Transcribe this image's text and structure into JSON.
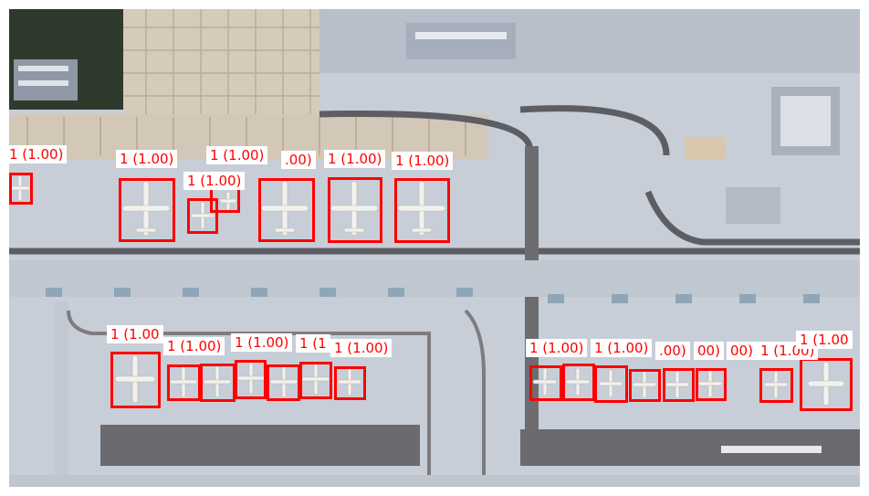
{
  "image": {
    "content": "aerial satellite view of airport apron with parked aircraft",
    "palette": {
      "apron": "#c6ccd6",
      "roof": "#d8cdbd",
      "taxiway": "#5c5c62",
      "box": "#ff0000",
      "label_bg": "#ffffff"
    }
  },
  "detections": [
    {
      "label": "1 (1.00)"
    },
    {
      "label": "1 (1.00)"
    },
    {
      "label": "1 (1.00)"
    },
    {
      "label": "1 (1.00)"
    },
    {
      "label": ".00)"
    },
    {
      "label": "1 (1.00)"
    },
    {
      "label": "1 (1.00)"
    },
    {
      "label": "1 (1.00"
    },
    {
      "label": "1 (1.00)"
    },
    {
      "label": "1 (1.00)"
    },
    {
      "label": "1 (1"
    },
    {
      "label": "1 (1.00)"
    },
    {
      "label": "1 (1.00)"
    },
    {
      "label": "1 (1.00)"
    },
    {
      "label": ".00)"
    },
    {
      "label": "00)"
    },
    {
      "label": "00)"
    },
    {
      "label": "1 (1.00)"
    },
    {
      "label": "1 (1.00"
    }
  ],
  "extra_boxes": 5
}
